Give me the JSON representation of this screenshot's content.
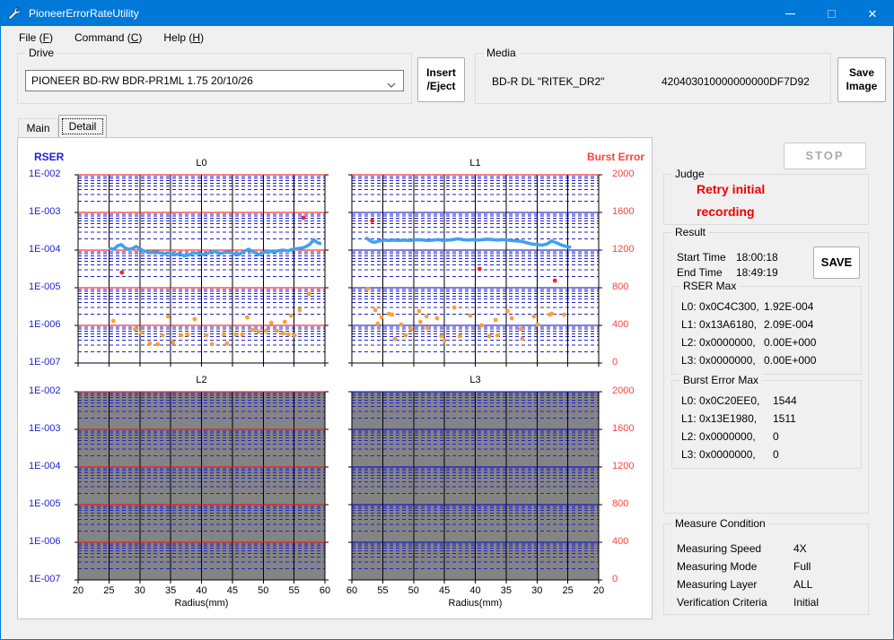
{
  "window": {
    "title": "PioneerErrorRateUtility"
  },
  "titlebar_icons": {
    "app": "wrench-icon",
    "minimize": "minimize-dash",
    "maximize": "maximize-square",
    "close": "close-x"
  },
  "menu": {
    "items": [
      {
        "text": "File",
        "key": "F"
      },
      {
        "text": "Command",
        "key": "C"
      },
      {
        "text": "Help",
        "key": "H"
      }
    ]
  },
  "drive": {
    "label": "Drive",
    "selected": "PIONEER BD-RW BDR-PR1ML 1.75 20/10/26",
    "insert_eject": [
      "Insert",
      "/Eject"
    ]
  },
  "media": {
    "label": "Media",
    "disc": "BD-R DL \"RITEK_DR2\"",
    "serial": "420403010000000000DF7D92",
    "save_image": [
      "Save",
      "Image"
    ]
  },
  "tabs": [
    {
      "label": "Main",
      "active": false
    },
    {
      "label": "Detail",
      "active": true
    }
  ],
  "right_panel": {
    "stop_label": "STOP",
    "judge": {
      "label": "Judge",
      "lines": [
        "Retry initial",
        "recording"
      ]
    },
    "result": {
      "label": "Result",
      "times": [
        {
          "label": "Start Time",
          "value": "18:00:18"
        },
        {
          "label": "End Time",
          "value": "18:49:19"
        }
      ],
      "save_label": "SAVE",
      "rser_max": {
        "label": "RSER Max",
        "rows": [
          {
            "prefix": "L0: 0x0C4C300,",
            "value": "1.92E-004"
          },
          {
            "prefix": "L1: 0x13A6180,",
            "value": "2.09E-004"
          },
          {
            "prefix": "L2: 0x0000000,",
            "value": "0.00E+000"
          },
          {
            "prefix": "L3: 0x0000000,",
            "value": "0.00E+000"
          }
        ]
      },
      "burst_max": {
        "label": "Burst Error Max",
        "rows": [
          {
            "prefix": "L0: 0x0C20EE0,",
            "value": "1544"
          },
          {
            "prefix": "L1: 0x13E1980,",
            "value": "1511"
          },
          {
            "prefix": "L2: 0x0000000,",
            "value": "0"
          },
          {
            "prefix": "L3: 0x0000000,",
            "value": "0"
          }
        ]
      }
    },
    "measure": {
      "label": "Measure Condition",
      "rows": [
        {
          "label": "Measuring Speed",
          "value": "4X"
        },
        {
          "label": "Measuring Mode",
          "value": "Full"
        },
        {
          "label": "Measuring Layer",
          "value": "ALL"
        },
        {
          "label": "Verification Criteria",
          "value": "Initial"
        }
      ]
    }
  },
  "colors": {
    "titlebar": "#0078D7",
    "rser_line": "#42A0F0",
    "burst_orange": "#FFA030",
    "burst_red": "#FF2020",
    "grid_minor_blue": "#2121CE",
    "decade_red": "#FF0000",
    "decade_blue": "#0000C8",
    "disabled_plot_bg": "#848484",
    "axis_label_blue": "#2222D2",
    "axis_label_red": "#FF4040",
    "judge_red": "#EE0000"
  },
  "chart_data": {
    "type": "line",
    "left_axis": {
      "label": "RSER",
      "scale": "log",
      "ticks": [
        "1E-002",
        "1E-003",
        "1E-004",
        "1E-005",
        "1E-006",
        "1E-007"
      ]
    },
    "right_axis": {
      "label": "Burst Error",
      "range": [
        0,
        2000
      ],
      "ticks": [
        "2000",
        "1600",
        "1200",
        "800",
        "400",
        "0"
      ]
    },
    "xlabel": "Radius(mm)",
    "subplots": [
      {
        "title": "L0",
        "enabled": true,
        "x_reversed": false,
        "x_tick_labels": [],
        "decade_color": "red",
        "top_color": "red",
        "rser_line": {
          "x": [
            25.2,
            25.8,
            26.4,
            27,
            27.6,
            28.2,
            28.8,
            29.4,
            30,
            30.6,
            31.2,
            31.8,
            32.5,
            33.2,
            34,
            34.8,
            35.6,
            36.4,
            37.2,
            38,
            38.8,
            39.6,
            40.4,
            41.2,
            42,
            42.8,
            43.6,
            44.4,
            45.2,
            46,
            46.8,
            47.6,
            48.4,
            49.2,
            50,
            50.8,
            51.6,
            52.4,
            53.2,
            54,
            54.8,
            55.6,
            56.4,
            57,
            57.6,
            58.2,
            58.7,
            59.2
          ],
          "v": [
            0.00011,
            0.000105,
            0.00013,
            0.00014,
            0.000115,
            0.000105,
            0.00011,
            0.000125,
            0.00011,
            9.5e-05,
            9e-05,
            8.5e-05,
            9e-05,
            8.5e-05,
            8e-05,
            8.5e-05,
            7.5e-05,
            8e-05,
            7e-05,
            7.5e-05,
            8.5e-05,
            8e-05,
            7.5e-05,
            8.5e-05,
            9.5e-05,
            8e-05,
            8.5e-05,
            9e-05,
            8e-05,
            7.5e-05,
            9e-05,
            0.000105,
            9e-05,
            7.5e-05,
            8.5e-05,
            9.5e-05,
            9e-05,
            9.5e-05,
            0.0001,
            9.5e-05,
            0.000105,
            0.00011,
            0.000115,
            0.000125,
            0.000145,
            0.00019,
            0.00016,
            0.00015
          ]
        },
        "burst_orange": [
          [
            25.7,
            448
          ],
          [
            29.2,
            362
          ],
          [
            30.3,
            324
          ],
          [
            31.6,
            210
          ],
          [
            32.9,
            200
          ],
          [
            33.7,
            295
          ],
          [
            34.6,
            495
          ],
          [
            35.4,
            219
          ],
          [
            36.7,
            295
          ],
          [
            37.7,
            305
          ],
          [
            38.9,
            467
          ],
          [
            40.8,
            295
          ],
          [
            41.7,
            200
          ],
          [
            43.6,
            305
          ],
          [
            44.1,
            210
          ],
          [
            45.6,
            305
          ],
          [
            46.6,
            305
          ],
          [
            47.4,
            486
          ],
          [
            48.3,
            352
          ],
          [
            49.2,
            333
          ],
          [
            50.4,
            343
          ],
          [
            51.3,
            429
          ],
          [
            52.2,
            343
          ],
          [
            53.2,
            314
          ],
          [
            53.5,
            438
          ],
          [
            54.1,
            305
          ],
          [
            54.5,
            505
          ],
          [
            55.1,
            295
          ],
          [
            55.9,
            562
          ],
          [
            57.4,
            733
          ]
        ],
        "burst_red": [
          [
            27.1,
            962
          ],
          [
            56.5,
            1544
          ]
        ]
      },
      {
        "title": "L1",
        "enabled": true,
        "x_reversed": true,
        "x_tick_labels": [],
        "decade_color": "blue",
        "top_color": "red",
        "rser_line": {
          "x": [
            57.6,
            57,
            56.4,
            55.8,
            55.2,
            54.6,
            54,
            53.2,
            52.4,
            51.6,
            50.8,
            50,
            49.2,
            48.4,
            47.6,
            46.8,
            46,
            45.2,
            44.4,
            43.6,
            42.8,
            42,
            41.2,
            40.4,
            39.6,
            38.8,
            38,
            37.2,
            36.4,
            35.6,
            34.8,
            34,
            33.2,
            32.4,
            31.6,
            30.8,
            30,
            29.2,
            28.4,
            27.6,
            26.8,
            26,
            25.3,
            24.7
          ],
          "v": [
            0.000205,
            0.000175,
            0.00016,
            0.00017,
            0.00018,
            0.000185,
            0.00018,
            0.000185,
            0.00018,
            0.000185,
            0.00018,
            0.000185,
            0.00019,
            0.000185,
            0.00018,
            0.000185,
            0.00019,
            0.00018,
            0.000185,
            0.00019,
            0.0002,
            0.00019,
            0.000185,
            0.00019,
            0.000185,
            0.00019,
            0.000195,
            0.00019,
            0.000185,
            0.00019,
            0.000185,
            0.00018,
            0.000175,
            0.00017,
            0.000155,
            0.000145,
            0.00014,
            0.000135,
            0.000145,
            0.000175,
            0.000155,
            0.000135,
            0.000125,
            0.00012
          ]
        },
        "burst_orange": [
          [
            57.4,
            790
          ],
          [
            56.2,
            562
          ],
          [
            55.8,
            419
          ],
          [
            55.2,
            486
          ],
          [
            54.0,
            524
          ],
          [
            53.5,
            514
          ],
          [
            53.0,
            257
          ],
          [
            52.0,
            410
          ],
          [
            51.3,
            295
          ],
          [
            50.4,
            362
          ],
          [
            49.1,
            552
          ],
          [
            48.9,
            438
          ],
          [
            47.9,
            495
          ],
          [
            47.8,
            371
          ],
          [
            46.2,
            476
          ],
          [
            45.5,
            286
          ],
          [
            45.0,
            238
          ],
          [
            43.4,
            590
          ],
          [
            42.5,
            286
          ],
          [
            40.8,
            505
          ],
          [
            39.0,
            400
          ],
          [
            37.7,
            286
          ],
          [
            36.7,
            457
          ],
          [
            36.4,
            295
          ],
          [
            34.8,
            552
          ],
          [
            34.1,
            476
          ],
          [
            32.6,
            362
          ],
          [
            32.4,
            257
          ],
          [
            30.5,
            495
          ],
          [
            29.9,
            410
          ],
          [
            27.9,
            514
          ],
          [
            27.6,
            524
          ],
          [
            25.6,
            514
          ]
        ],
        "burst_red": [
          [
            56.7,
            1511
          ],
          [
            39.3,
            1000
          ],
          [
            27.1,
            876
          ]
        ]
      },
      {
        "title": "L2",
        "enabled": false,
        "x_reversed": false,
        "x_tick_labels": [
          "20",
          "25",
          "30",
          "35",
          "40",
          "45",
          "50",
          "55",
          "60"
        ],
        "decade_color": "red",
        "top_color": "red",
        "rser_line": {
          "x": [],
          "v": []
        },
        "burst_orange": [],
        "burst_red": []
      },
      {
        "title": "L3",
        "enabled": false,
        "x_reversed": true,
        "x_tick_labels": [
          "60",
          "55",
          "50",
          "45",
          "40",
          "35",
          "30",
          "25",
          "20"
        ],
        "decade_color": "blue",
        "top_color": "blue",
        "rser_line": {
          "x": [],
          "v": []
        },
        "burst_orange": [],
        "burst_red": []
      }
    ]
  }
}
